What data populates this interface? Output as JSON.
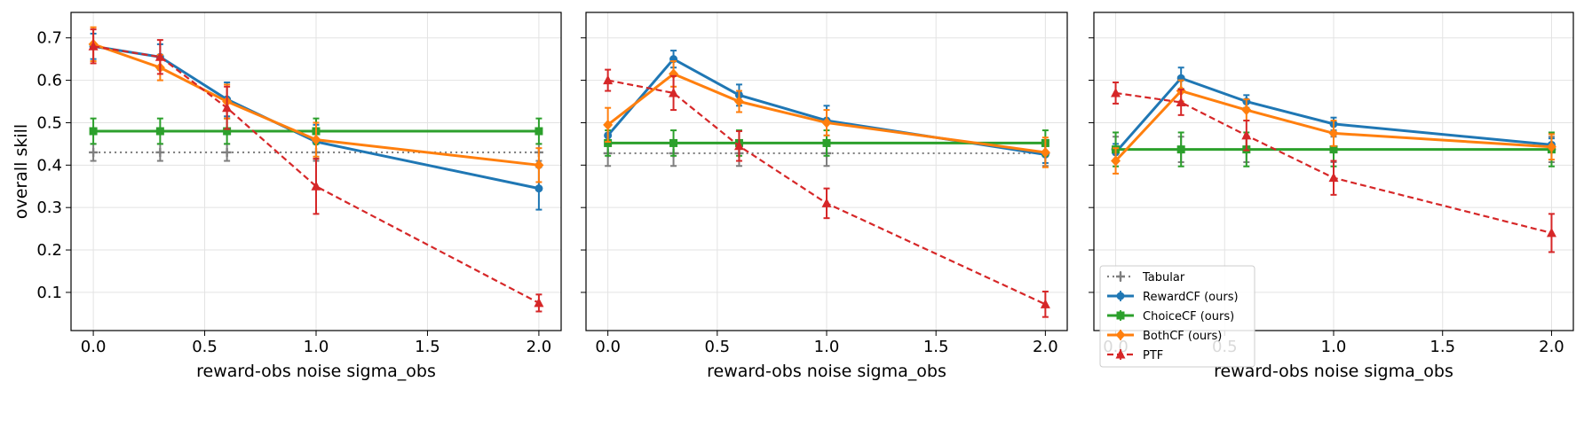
{
  "chart_data": [
    {
      "type": "line",
      "title": "",
      "xlabel": "reward-obs noise  sigma_obs",
      "ylabel": "overall skill",
      "xlim": [
        -0.1,
        2.1
      ],
      "ylim": [
        0.01,
        0.76
      ],
      "xticks": [
        "0.0",
        "0.5",
        "1.0",
        "1.5",
        "2.0"
      ],
      "yticks": [
        "0.1",
        "0.2",
        "0.3",
        "0.4",
        "0.5",
        "0.6",
        "0.7"
      ],
      "grid": true,
      "legend": null,
      "series": [
        {
          "name": "Tabular",
          "color": "#7f7f7f",
          "style": "dotted",
          "marker": "plus",
          "x": [
            0,
            0.3,
            0.6,
            1.0,
            2.0
          ],
          "y": [
            0.43,
            0.43,
            0.43,
            0.43,
            0.43
          ],
          "err": [
            0.02,
            0.02,
            0.02,
            0.02,
            0.02
          ]
        },
        {
          "name": "RewardCF (ours)",
          "color": "#1f77b4",
          "style": "solid",
          "marker": "circle",
          "x": [
            0,
            0.3,
            0.6,
            1.0,
            2.0
          ],
          "y": [
            0.68,
            0.655,
            0.555,
            0.455,
            0.345
          ],
          "err": [
            0.03,
            0.03,
            0.04,
            0.04,
            0.05
          ]
        },
        {
          "name": "ChoiceCF (ours)",
          "color": "#2ca02c",
          "style": "solid",
          "marker": "square",
          "x": [
            0,
            0.3,
            0.6,
            1.0,
            2.0
          ],
          "y": [
            0.48,
            0.48,
            0.48,
            0.48,
            0.48
          ],
          "err": [
            0.03,
            0.03,
            0.03,
            0.03,
            0.03
          ]
        },
        {
          "name": "BothCF (ours)",
          "color": "#ff7f0e",
          "style": "solid",
          "marker": "diamond",
          "x": [
            0,
            0.3,
            0.6,
            1.0,
            2.0
          ],
          "y": [
            0.685,
            0.63,
            0.55,
            0.46,
            0.4
          ],
          "err": [
            0.04,
            0.03,
            0.04,
            0.04,
            0.04
          ]
        },
        {
          "name": "PTF",
          "color": "#d62728",
          "style": "dashed",
          "marker": "triangle",
          "x": [
            0,
            0.3,
            0.6,
            1.0,
            2.0
          ],
          "y": [
            0.68,
            0.655,
            0.535,
            0.35,
            0.075
          ],
          "err": [
            0.04,
            0.04,
            0.05,
            0.065,
            0.02
          ]
        }
      ]
    },
    {
      "type": "line",
      "title": "",
      "xlabel": "reward-obs noise  sigma_obs",
      "ylabel": "",
      "xlim": [
        -0.1,
        2.1
      ],
      "ylim": [
        0.01,
        0.76
      ],
      "xticks": [
        "0.0",
        "0.5",
        "1.0",
        "1.5",
        "2.0"
      ],
      "yticks": [],
      "grid": true,
      "legend": null,
      "series": [
        {
          "name": "Tabular",
          "color": "#7f7f7f",
          "style": "dotted",
          "marker": "plus",
          "x": [
            0,
            0.3,
            0.6,
            1.0,
            2.0
          ],
          "y": [
            0.428,
            0.428,
            0.428,
            0.428,
            0.428
          ],
          "err": [
            0.03,
            0.03,
            0.03,
            0.03,
            0.03
          ]
        },
        {
          "name": "RewardCF (ours)",
          "color": "#1f77b4",
          "style": "solid",
          "marker": "circle",
          "x": [
            0,
            0.3,
            0.6,
            1.0,
            2.0
          ],
          "y": [
            0.47,
            0.65,
            0.565,
            0.505,
            0.425
          ],
          "err": [
            0.025,
            0.02,
            0.025,
            0.035,
            0.02
          ]
        },
        {
          "name": "ChoiceCF (ours)",
          "color": "#2ca02c",
          "style": "solid",
          "marker": "square",
          "x": [
            0,
            0.3,
            0.6,
            1.0,
            2.0
          ],
          "y": [
            0.452,
            0.452,
            0.452,
            0.452,
            0.452
          ],
          "err": [
            0.03,
            0.03,
            0.03,
            0.03,
            0.03
          ]
        },
        {
          "name": "BothCF (ours)",
          "color": "#ff7f0e",
          "style": "solid",
          "marker": "diamond",
          "x": [
            0,
            0.3,
            0.6,
            1.0,
            2.0
          ],
          "y": [
            0.495,
            0.615,
            0.55,
            0.5,
            0.43
          ],
          "err": [
            0.04,
            0.03,
            0.025,
            0.03,
            0.035
          ]
        },
        {
          "name": "PTF",
          "color": "#d62728",
          "style": "dashed",
          "marker": "triangle",
          "x": [
            0,
            0.3,
            0.6,
            1.0,
            2.0
          ],
          "y": [
            0.6,
            0.57,
            0.445,
            0.31,
            0.072
          ],
          "err": [
            0.025,
            0.04,
            0.035,
            0.035,
            0.03
          ]
        }
      ]
    },
    {
      "type": "line",
      "title": "",
      "xlabel": "reward-obs noise  sigma_obs",
      "ylabel": "",
      "xlim": [
        -0.1,
        2.1
      ],
      "ylim": [
        0.01,
        0.76
      ],
      "xticks": [
        "0.0",
        "0.5",
        "1.0",
        "1.5",
        "2.0"
      ],
      "yticks": [],
      "grid": true,
      "legend": "lower-left",
      "series": [
        {
          "name": "Tabular",
          "color": "#7f7f7f",
          "style": "dotted",
          "marker": "plus",
          "x": [
            0,
            0.3,
            0.6,
            1.0,
            2.0
          ],
          "y": [
            0.437,
            0.437,
            0.437,
            0.437,
            0.437
          ],
          "err": [
            0.03,
            0.03,
            0.03,
            0.03,
            0.03
          ]
        },
        {
          "name": "RewardCF (ours)",
          "color": "#1f77b4",
          "style": "solid",
          "marker": "circle",
          "x": [
            0,
            0.3,
            0.6,
            1.0,
            2.0
          ],
          "y": [
            0.43,
            0.605,
            0.55,
            0.497,
            0.448
          ],
          "err": [
            0.02,
            0.025,
            0.015,
            0.015,
            0.015
          ]
        },
        {
          "name": "ChoiceCF (ours)",
          "color": "#2ca02c",
          "style": "solid",
          "marker": "square",
          "x": [
            0,
            0.3,
            0.6,
            1.0,
            2.0
          ],
          "y": [
            0.437,
            0.437,
            0.437,
            0.437,
            0.437
          ],
          "err": [
            0.04,
            0.04,
            0.04,
            0.04,
            0.04
          ]
        },
        {
          "name": "BothCF (ours)",
          "color": "#ff7f0e",
          "style": "solid",
          "marker": "diamond",
          "x": [
            0,
            0.3,
            0.6,
            1.0,
            2.0
          ],
          "y": [
            0.41,
            0.575,
            0.53,
            0.475,
            0.443
          ],
          "err": [
            0.03,
            0.025,
            0.025,
            0.03,
            0.03
          ]
        },
        {
          "name": "PTF",
          "color": "#d62728",
          "style": "dashed",
          "marker": "triangle",
          "x": [
            0,
            0.3,
            0.6,
            1.0,
            2.0
          ],
          "y": [
            0.57,
            0.548,
            0.47,
            0.37,
            0.24
          ],
          "err": [
            0.025,
            0.03,
            0.035,
            0.04,
            0.045
          ]
        }
      ]
    }
  ]
}
